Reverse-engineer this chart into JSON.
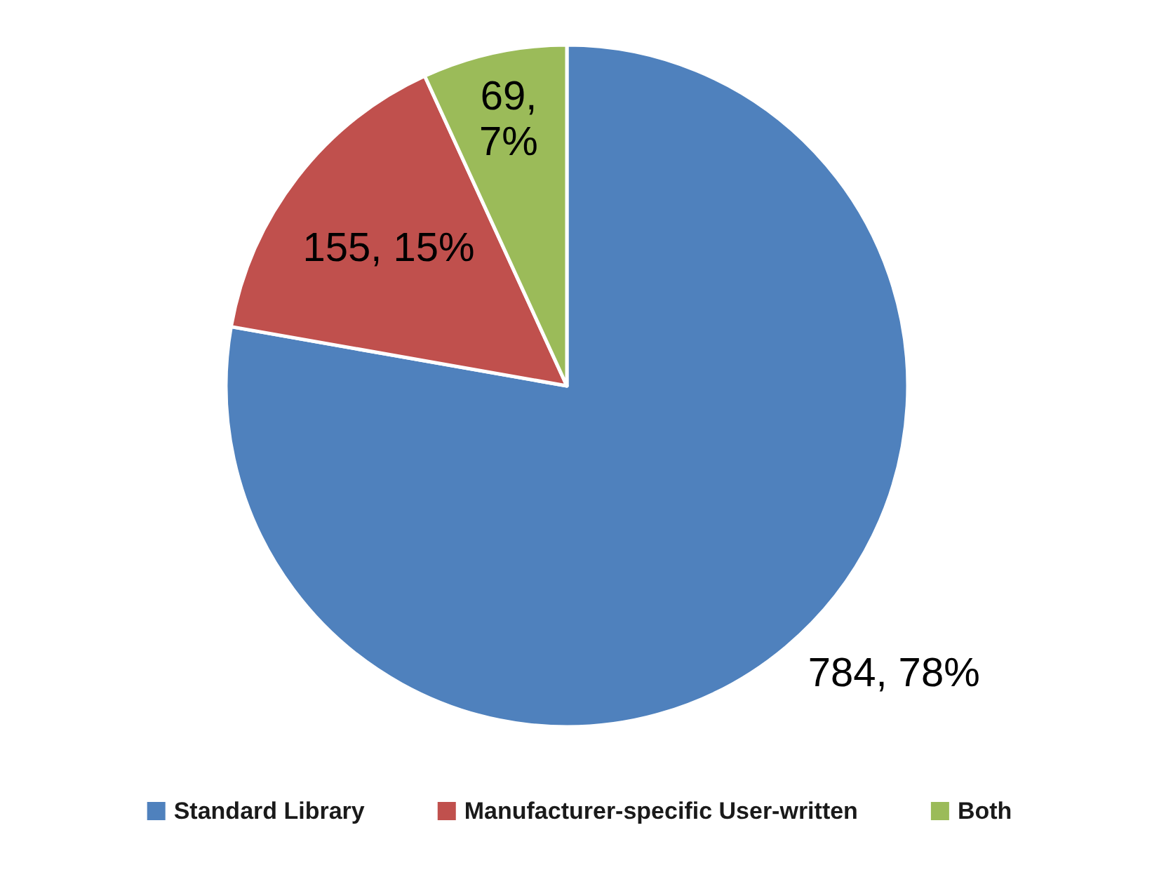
{
  "chart_data": {
    "type": "pie",
    "categories": [
      "Standard Library",
      "Manufacturer-specific User-written",
      "Both"
    ],
    "values": [
      784,
      155,
      69
    ],
    "colors": [
      "#4f81bd",
      "#c0504d",
      "#9bbb59"
    ],
    "value_labels": [
      "784, 78%",
      "155, 15%",
      "69, 7%"
    ],
    "legend": "bottom"
  }
}
